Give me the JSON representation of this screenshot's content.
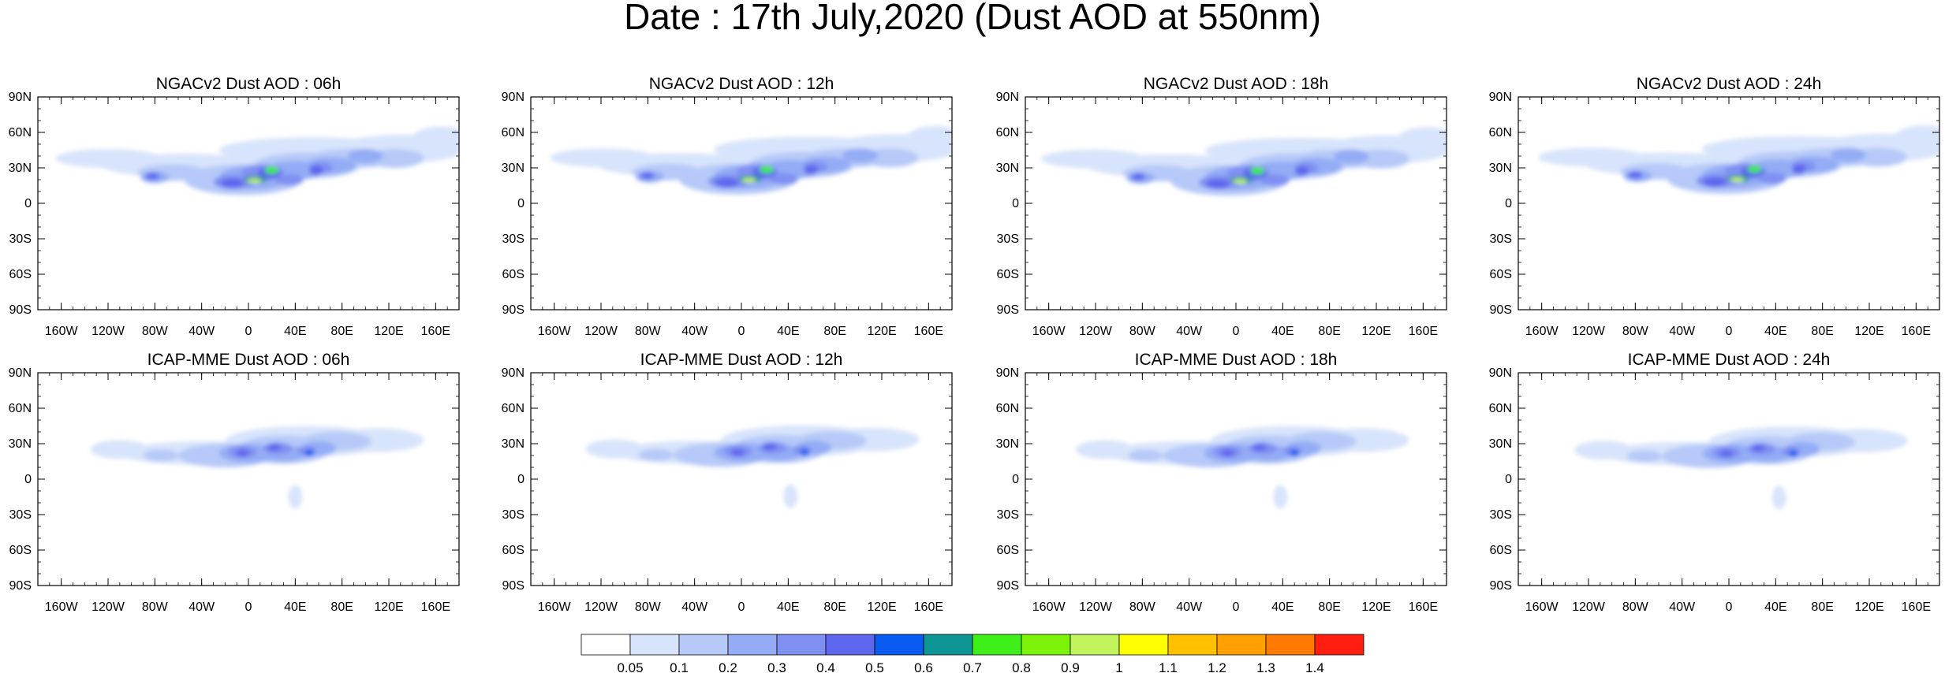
{
  "figure": {
    "title": "Date : 17th July,2020 (Dust AOD at 550nm)"
  },
  "panels": [
    {
      "title": "NGACv2 Dust AOD : 06h",
      "model": "NGAC",
      "variant": 0
    },
    {
      "title": "NGACv2 Dust AOD : 12h",
      "model": "NGAC",
      "variant": 1
    },
    {
      "title": "NGACv2 Dust AOD : 18h",
      "model": "NGAC",
      "variant": 2
    },
    {
      "title": "NGACv2 Dust AOD : 24h",
      "model": "NGAC",
      "variant": 3
    },
    {
      "title": "ICAP-MME Dust AOD : 06h",
      "model": "ICAP",
      "variant": 0
    },
    {
      "title": "ICAP-MME Dust AOD : 12h",
      "model": "ICAP",
      "variant": 1
    },
    {
      "title": "ICAP-MME Dust AOD : 18h",
      "model": "ICAP",
      "variant": 2
    },
    {
      "title": "ICAP-MME Dust AOD : 24h",
      "model": "ICAP",
      "variant": 3
    }
  ],
  "axes": {
    "lon_ticks": [
      -160,
      -120,
      -80,
      -40,
      0,
      40,
      80,
      120,
      160
    ],
    "lon_labels": [
      "160W",
      "120W",
      "80W",
      "40W",
      "0",
      "40E",
      "80E",
      "120E",
      "160E"
    ],
    "lat_ticks": [
      90,
      60,
      30,
      0,
      -30,
      -60,
      -90
    ],
    "lat_labels": [
      "90N",
      "60N",
      "30N",
      "0",
      "30S",
      "60S",
      "90S"
    ],
    "lon_range": [
      -180,
      180
    ],
    "lat_range": [
      -90,
      90
    ]
  },
  "colorbar": {
    "colors": [
      "#ffffff",
      "#d8e4fb",
      "#b6c9f8",
      "#93acf5",
      "#7f90f2",
      "#5f66ee",
      "#0a5bf2",
      "#0e9696",
      "#3eef1a",
      "#7ef30a",
      "#c2f55c",
      "#ffff00",
      "#ffc000",
      "#ffa000",
      "#ff7a00",
      "#ff1e10"
    ],
    "labels": [
      "0.05",
      "0.1",
      "0.2",
      "0.3",
      "0.4",
      "0.5",
      "0.6",
      "0.7",
      "0.8",
      "0.9",
      "1",
      "1.1",
      "1.2",
      "1.3",
      "1.4"
    ]
  }
}
